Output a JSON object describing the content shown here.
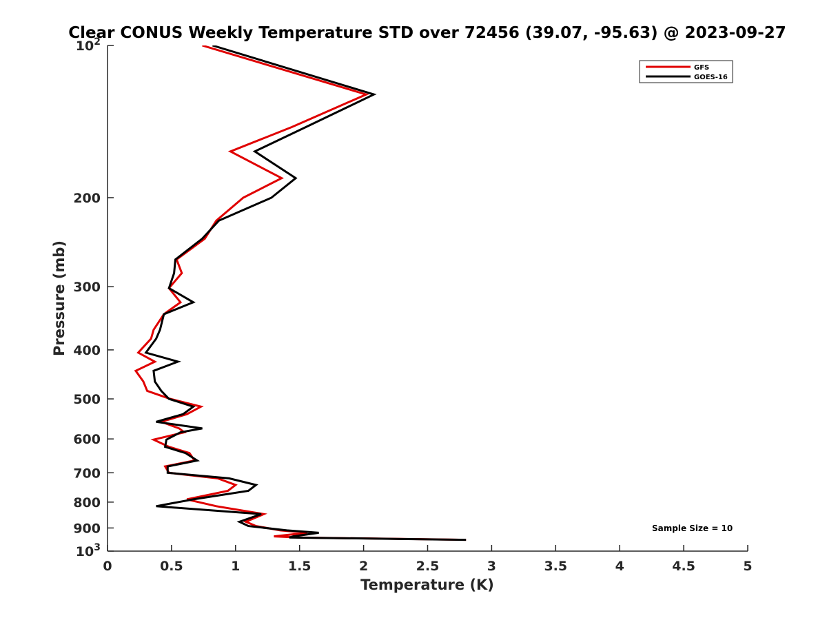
{
  "chart_data": {
    "type": "line",
    "title": "Clear CONUS Weekly Temperature STD over 72456 (39.07, -95.63) @ 2023-09-27",
    "xlabel": "Temperature (K)",
    "ylabel": "Pressure (mb)",
    "xlim": [
      0,
      5
    ],
    "ylim": [
      100,
      1000
    ],
    "y_scale": "log",
    "y_reversed": true,
    "grid": false,
    "legend_position": "top-right",
    "x_ticks": [
      0,
      0.5,
      1,
      1.5,
      2,
      2.5,
      3,
      3.5,
      4,
      4.5,
      5
    ],
    "x_tick_labels": [
      "0",
      "0.5",
      "1",
      "1.5",
      "2",
      "2.5",
      "3",
      "3.5",
      "4",
      "4.5",
      "5"
    ],
    "y_ticks": [
      100,
      200,
      300,
      400,
      500,
      600,
      700,
      800,
      900,
      1000
    ],
    "y_tick_labels": [
      {
        "base": "10",
        "exp": "2"
      },
      {
        "base": "200",
        "exp": ""
      },
      {
        "base": "300",
        "exp": ""
      },
      {
        "base": "400",
        "exp": ""
      },
      {
        "base": "500",
        "exp": ""
      },
      {
        "base": "600",
        "exp": ""
      },
      {
        "base": "700",
        "exp": ""
      },
      {
        "base": "800",
        "exp": ""
      },
      {
        "base": "900",
        "exp": ""
      },
      {
        "base": "10",
        "exp": "3"
      }
    ],
    "annotation": "Sample Size = 10",
    "series": [
      {
        "name": "GFS",
        "color": "#e00000",
        "points": [
          [
            0.74,
            100
          ],
          [
            2.02,
            125
          ],
          [
            1.44,
            145
          ],
          [
            0.96,
            162
          ],
          [
            1.36,
            183
          ],
          [
            1.06,
            200
          ],
          [
            0.85,
            222
          ],
          [
            0.76,
            241
          ],
          [
            0.54,
            265
          ],
          [
            0.58,
            282
          ],
          [
            0.48,
            302
          ],
          [
            0.57,
            322
          ],
          [
            0.44,
            340
          ],
          [
            0.36,
            365
          ],
          [
            0.34,
            380
          ],
          [
            0.24,
            405
          ],
          [
            0.37,
            422
          ],
          [
            0.22,
            440
          ],
          [
            0.28,
            462
          ],
          [
            0.31,
            482
          ],
          [
            0.49,
            500
          ],
          [
            0.73,
            518
          ],
          [
            0.62,
            536
          ],
          [
            0.42,
            555
          ],
          [
            0.56,
            572
          ],
          [
            0.6,
            582
          ],
          [
            0.36,
            602
          ],
          [
            0.48,
            622
          ],
          [
            0.64,
            640
          ],
          [
            0.68,
            662
          ],
          [
            0.45,
            680
          ],
          [
            0.48,
            700
          ],
          [
            0.86,
            718
          ],
          [
            1.0,
            740
          ],
          [
            0.94,
            760
          ],
          [
            0.62,
            790
          ],
          [
            0.85,
            815
          ],
          [
            1.22,
            845
          ],
          [
            1.08,
            875
          ],
          [
            1.16,
            892
          ],
          [
            1.35,
            910
          ],
          [
            1.56,
            920
          ],
          [
            1.3,
            935
          ],
          [
            1.5,
            940
          ],
          [
            2.8,
            950
          ]
        ]
      },
      {
        "name": "GOES-16",
        "color": "#000000",
        "points": [
          [
            0.82,
            100
          ],
          [
            2.08,
            125
          ],
          [
            1.55,
            145
          ],
          [
            1.15,
            162
          ],
          [
            1.47,
            183
          ],
          [
            1.28,
            200
          ],
          [
            0.87,
            222
          ],
          [
            0.74,
            241
          ],
          [
            0.53,
            265
          ],
          [
            0.52,
            282
          ],
          [
            0.48,
            302
          ],
          [
            0.67,
            322
          ],
          [
            0.44,
            340
          ],
          [
            0.41,
            365
          ],
          [
            0.38,
            380
          ],
          [
            0.3,
            405
          ],
          [
            0.55,
            422
          ],
          [
            0.36,
            440
          ],
          [
            0.37,
            462
          ],
          [
            0.42,
            482
          ],
          [
            0.48,
            500
          ],
          [
            0.67,
            518
          ],
          [
            0.59,
            536
          ],
          [
            0.38,
            555
          ],
          [
            0.74,
            572
          ],
          [
            0.57,
            582
          ],
          [
            0.46,
            602
          ],
          [
            0.45,
            622
          ],
          [
            0.61,
            640
          ],
          [
            0.7,
            662
          ],
          [
            0.47,
            680
          ],
          [
            0.47,
            700
          ],
          [
            0.95,
            718
          ],
          [
            1.16,
            740
          ],
          [
            1.1,
            760
          ],
          [
            0.67,
            790
          ],
          [
            0.38,
            815
          ],
          [
            1.2,
            845
          ],
          [
            1.03,
            875
          ],
          [
            1.1,
            892
          ],
          [
            1.4,
            910
          ],
          [
            1.65,
            920
          ],
          [
            1.45,
            935
          ],
          [
            1.42,
            940
          ],
          [
            2.8,
            950
          ]
        ]
      }
    ]
  }
}
